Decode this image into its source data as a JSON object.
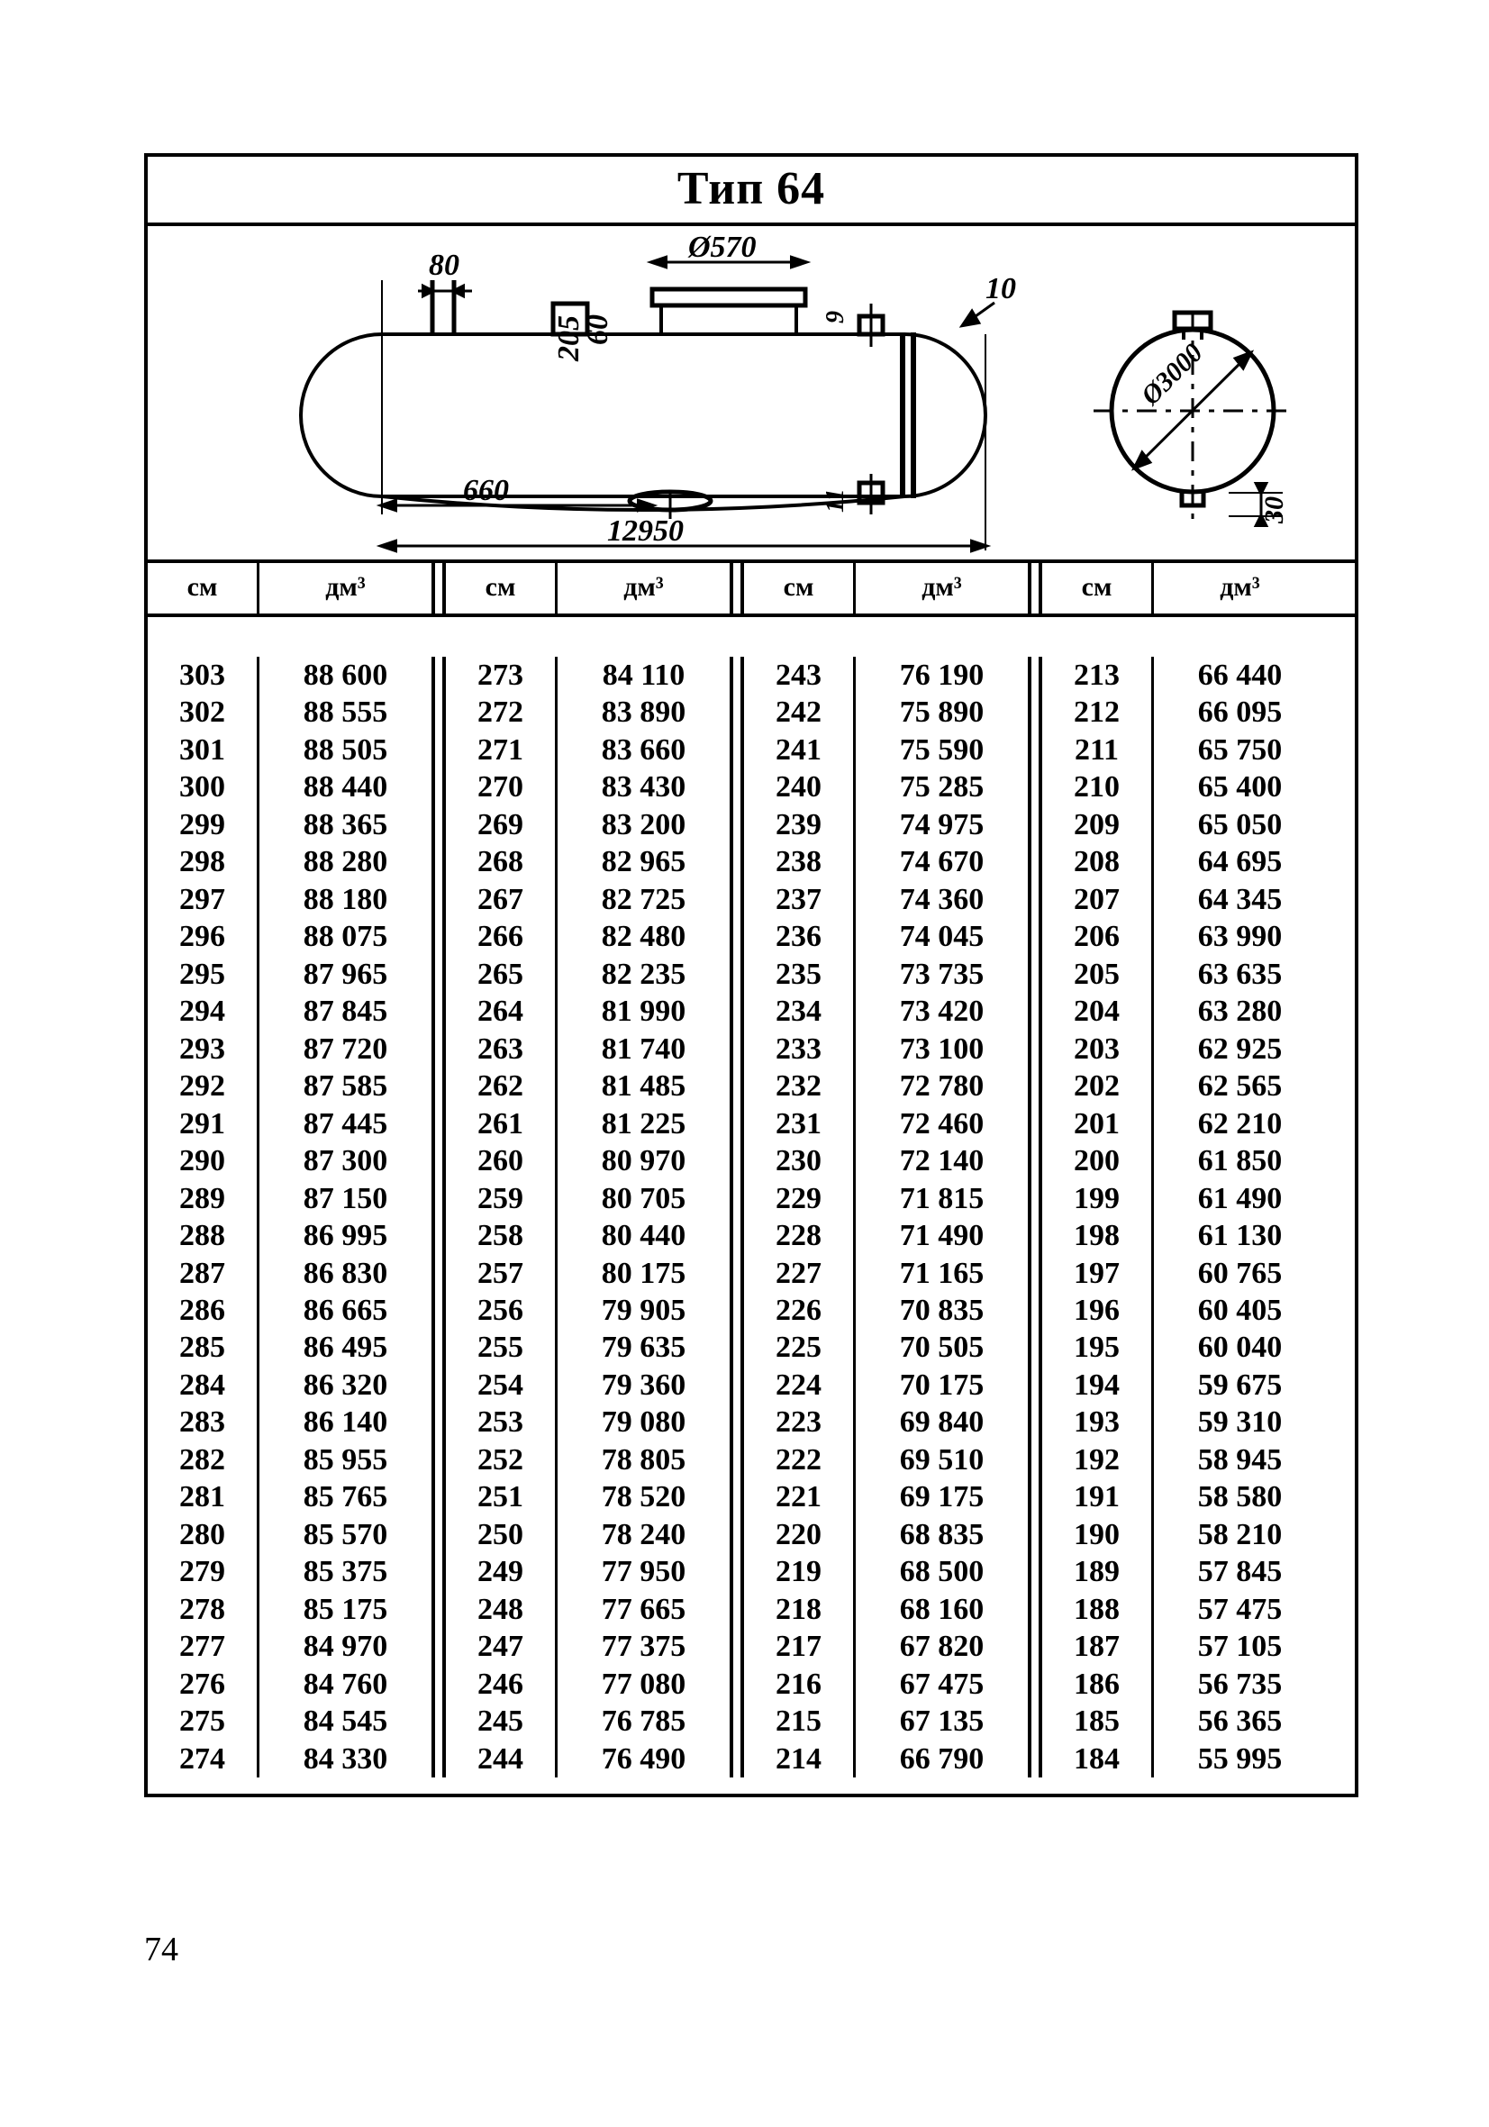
{
  "title": "Тип  64",
  "page_number": "74",
  "header": {
    "cm": "см",
    "dm3": "дм³"
  },
  "diagram": {
    "phi570": "Ø570",
    "d80": "80",
    "d205": "205",
    "d60": "60",
    "d9": "9",
    "d10": "10",
    "d11": "11",
    "d660": "660",
    "d12950": "12950",
    "phi3000": "Ø3000",
    "d30": "30"
  },
  "layout": {
    "col_cm_w": 121,
    "col_dm_w": 191,
    "sep_thin_w": 3,
    "sep_double_w": 16
  },
  "columns": [
    {
      "cm": [
        "303",
        "302",
        "301",
        "300",
        "299",
        "298",
        "297",
        "296",
        "295",
        "294",
        "293",
        "292",
        "291",
        "290",
        "289",
        "288",
        "287",
        "286",
        "285",
        "284",
        "283",
        "282",
        "281",
        "280",
        "279",
        "278",
        "277",
        "276",
        "275",
        "274"
      ],
      "dm": [
        "88 600",
        "88 555",
        "88 505",
        "88 440",
        "88 365",
        "88 280",
        "88 180",
        "88 075",
        "87 965",
        "87 845",
        "87 720",
        "87 585",
        "87 445",
        "87 300",
        "87 150",
        "86 995",
        "86 830",
        "86 665",
        "86 495",
        "86 320",
        "86 140",
        "85 955",
        "85 765",
        "85 570",
        "85 375",
        "85 175",
        "84 970",
        "84 760",
        "84 545",
        "84 330"
      ]
    },
    {
      "cm": [
        "273",
        "272",
        "271",
        "270",
        "269",
        "268",
        "267",
        "266",
        "265",
        "264",
        "263",
        "262",
        "261",
        "260",
        "259",
        "258",
        "257",
        "256",
        "255",
        "254",
        "253",
        "252",
        "251",
        "250",
        "249",
        "248",
        "247",
        "246",
        "245",
        "244"
      ],
      "dm": [
        "84 110",
        "83 890",
        "83 660",
        "83 430",
        "83 200",
        "82 965",
        "82 725",
        "82 480",
        "82 235",
        "81 990",
        "81 740",
        "81 485",
        "81 225",
        "80 970",
        "80 705",
        "80 440",
        "80 175",
        "79 905",
        "79 635",
        "79 360",
        "79 080",
        "78 805",
        "78 520",
        "78 240",
        "77 950",
        "77 665",
        "77 375",
        "77 080",
        "76 785",
        "76 490"
      ]
    },
    {
      "cm": [
        "243",
        "242",
        "241",
        "240",
        "239",
        "238",
        "237",
        "236",
        "235",
        "234",
        "233",
        "232",
        "231",
        "230",
        "229",
        "228",
        "227",
        "226",
        "225",
        "224",
        "223",
        "222",
        "221",
        "220",
        "219",
        "218",
        "217",
        "216",
        "215",
        "214"
      ],
      "dm": [
        "76 190",
        "75 890",
        "75 590",
        "75 285",
        "74 975",
        "74 670",
        "74 360",
        "74 045",
        "73 735",
        "73 420",
        "73 100",
        "72 780",
        "72 460",
        "72 140",
        "71 815",
        "71 490",
        "71 165",
        "70 835",
        "70 505",
        "70 175",
        "69 840",
        "69 510",
        "69 175",
        "68 835",
        "68 500",
        "68 160",
        "67 820",
        "67 475",
        "67 135",
        "66 790"
      ]
    },
    {
      "cm": [
        "213",
        "212",
        "211",
        "210",
        "209",
        "208",
        "207",
        "206",
        "205",
        "204",
        "203",
        "202",
        "201",
        "200",
        "199",
        "198",
        "197",
        "196",
        "195",
        "194",
        "193",
        "192",
        "191",
        "190",
        "189",
        "188",
        "187",
        "186",
        "185",
        "184"
      ],
      "dm": [
        "66 440",
        "66 095",
        "65 750",
        "65 400",
        "65 050",
        "64 695",
        "64 345",
        "63 990",
        "63 635",
        "63 280",
        "62 925",
        "62 565",
        "62 210",
        "61 850",
        "61 490",
        "61 130",
        "60 765",
        "60 405",
        "60 040",
        "59 675",
        "59 310",
        "58 945",
        "58 580",
        "58 210",
        "57 845",
        "57 475",
        "57 105",
        "56 735",
        "56 365",
        "55 995"
      ]
    }
  ]
}
